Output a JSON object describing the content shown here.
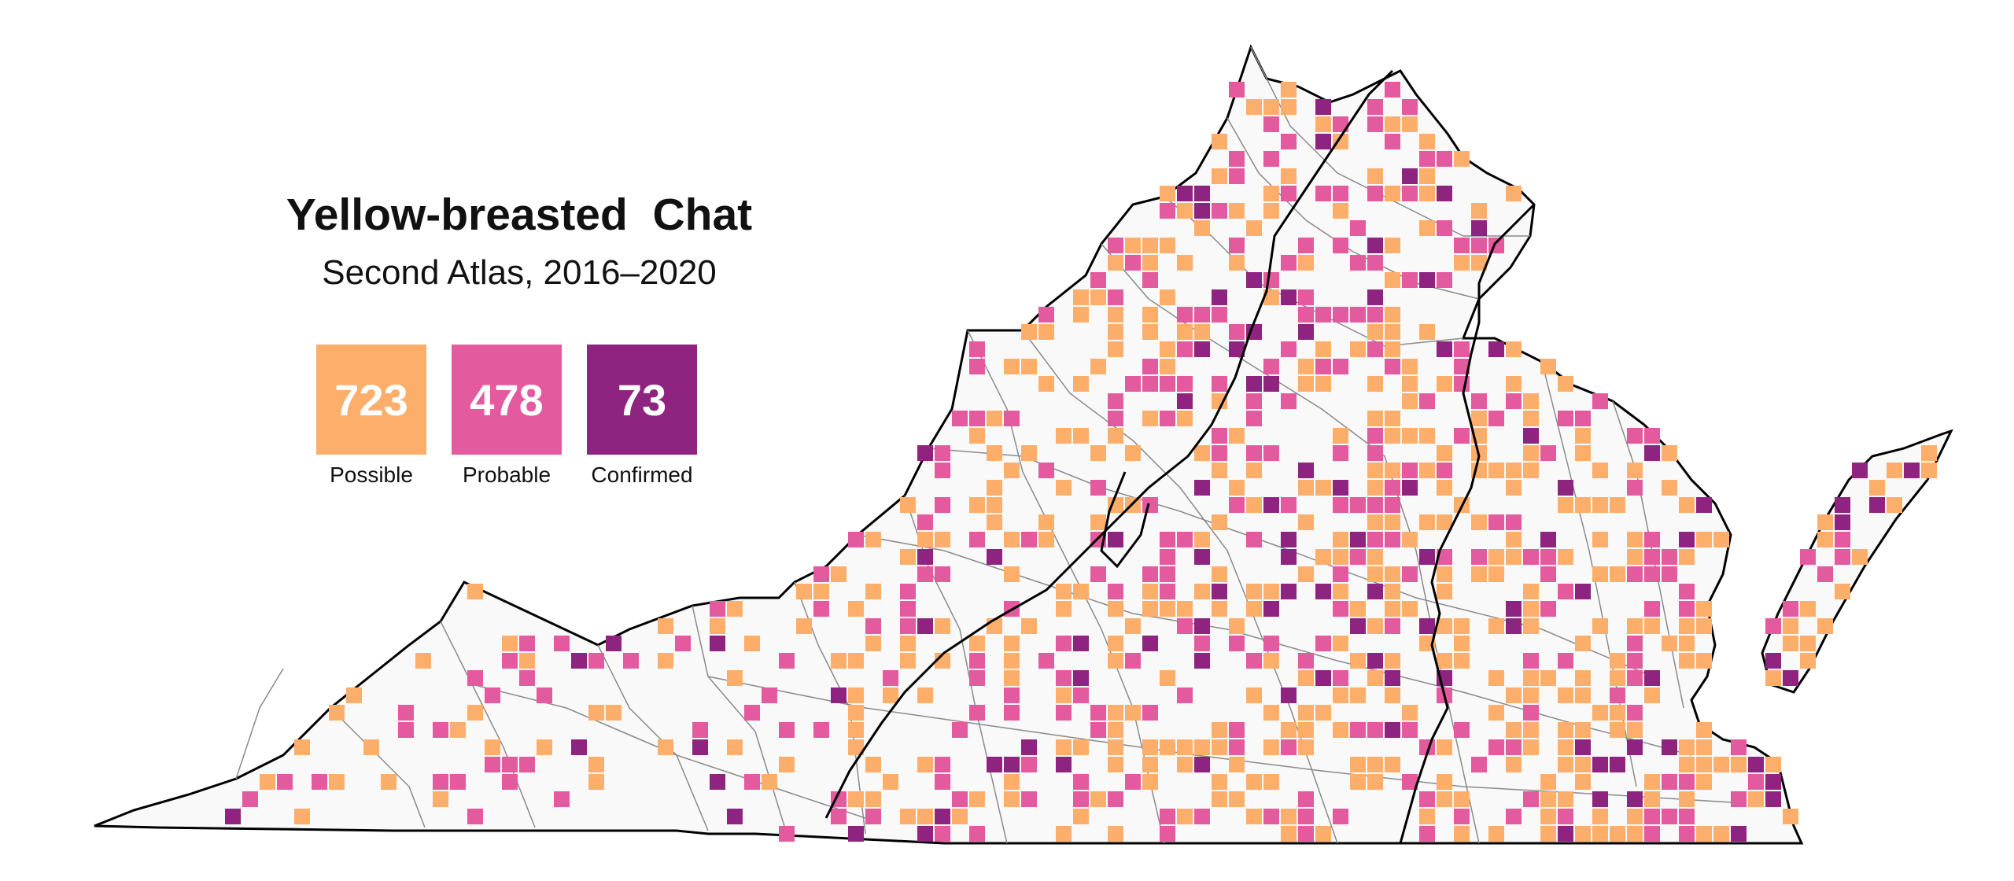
{
  "title": "Yellow-breasted  Chat",
  "subtitle": "Second Atlas, 2016–2020",
  "legend": [
    {
      "count": "723",
      "label": "Possible",
      "color": "#fdae6b"
    },
    {
      "count": "478",
      "label": "Probable",
      "color": "#e35a9e"
    },
    {
      "count": "73",
      "label": "Confirmed",
      "color": "#8e2480"
    }
  ],
  "map": {
    "state_fill": "#f9f9f9",
    "state_outline": "#000000",
    "county_line": "#8a8a8a"
  }
}
